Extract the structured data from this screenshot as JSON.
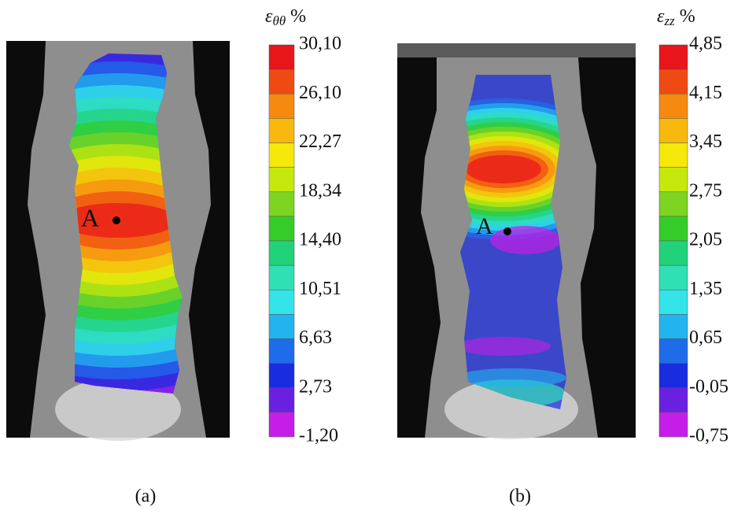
{
  "panels": [
    {
      "colorbar": {
        "title": {
          "symbol": "ε",
          "subscript": "θθ",
          "unit": "%"
        },
        "ticks": [
          "30,10",
          "26,10",
          "22,27",
          "18,34",
          "14,40",
          "10,51",
          "6,63",
          "2,73",
          "-1,20"
        ]
      },
      "point_label": "A",
      "caption": "(a)"
    },
    {
      "colorbar": {
        "title": {
          "symbol": "ε",
          "subscript": "zz",
          "unit": "%"
        },
        "ticks": [
          "4,85",
          "4,15",
          "3,45",
          "2,75",
          "2,05",
          "1,35",
          "0,65",
          "-0,05",
          "-0,75"
        ]
      },
      "point_label": "A",
      "caption": "(b)"
    }
  ]
}
